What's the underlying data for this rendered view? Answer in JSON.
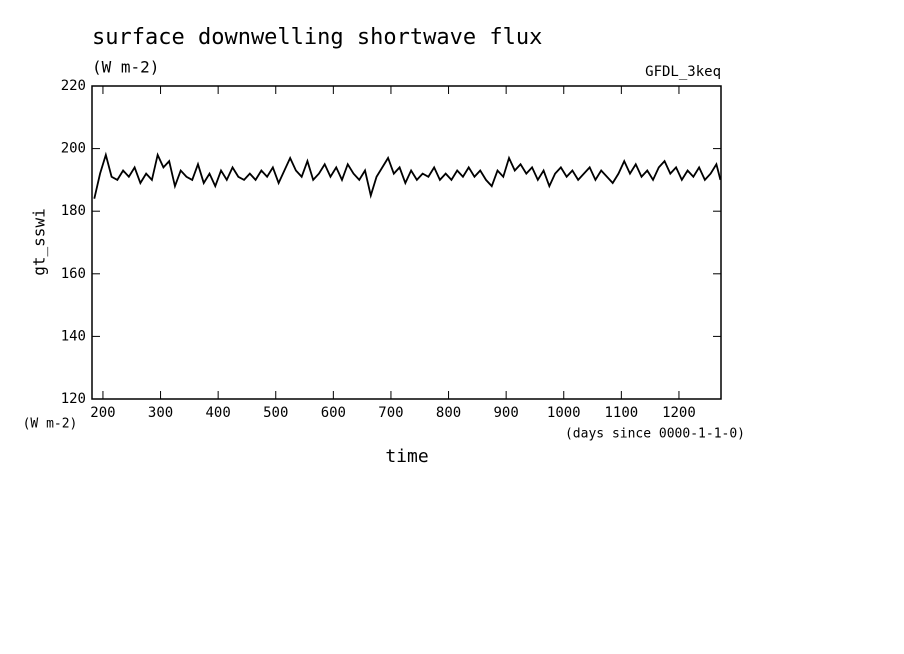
{
  "chart_data": {
    "type": "line",
    "title": "surface downwelling shortwave flux",
    "subtitle": "(W m-2)",
    "annotation": "GFDL_3keq",
    "y_label": "gt_sswi",
    "y_unit": "(W m-2)",
    "x_label": "time",
    "x_unit": "(days since 0000-1-1-0)",
    "x": [
      185,
      195,
      205,
      215,
      225,
      235,
      245,
      255,
      265,
      275,
      285,
      295,
      305,
      315,
      325,
      335,
      345,
      355,
      365,
      375,
      385,
      395,
      405,
      415,
      425,
      435,
      445,
      455,
      465,
      475,
      485,
      495,
      505,
      515,
      525,
      535,
      545,
      555,
      565,
      575,
      585,
      595,
      605,
      615,
      625,
      635,
      645,
      655,
      665,
      675,
      685,
      695,
      705,
      715,
      725,
      735,
      745,
      755,
      765,
      775,
      785,
      795,
      805,
      815,
      825,
      835,
      845,
      855,
      865,
      875,
      885,
      895,
      905,
      915,
      925,
      935,
      945,
      955,
      965,
      975,
      985,
      995,
      1005,
      1015,
      1025,
      1035,
      1045,
      1055,
      1065,
      1075,
      1085,
      1095,
      1105,
      1115,
      1125,
      1135,
      1145,
      1155,
      1165,
      1175,
      1185,
      1195,
      1205,
      1215,
      1225,
      1235,
      1245,
      1255,
      1265,
      1272
    ],
    "series": [
      {
        "color": "#000000",
        "values": [
          184,
          192,
          198,
          191,
          190,
          193,
          191,
          194,
          189,
          192,
          190,
          198,
          194,
          196,
          188,
          193,
          191,
          190,
          195,
          189,
          192,
          188,
          193,
          190,
          194,
          191,
          190,
          192,
          190,
          193,
          191,
          194,
          189,
          193,
          197,
          193,
          191,
          196,
          190,
          192,
          195,
          191,
          194,
          190,
          195,
          192,
          190,
          193,
          185,
          191,
          194,
          197,
          192,
          194,
          189,
          193,
          190,
          192,
          191,
          194,
          190,
          192,
          190,
          193,
          191,
          194,
          191,
          193,
          190,
          188,
          193,
          191,
          197,
          193,
          195,
          192,
          194,
          190,
          193,
          188,
          192,
          194,
          191,
          193,
          190,
          192,
          194,
          190,
          193,
          191,
          189,
          192,
          196,
          192,
          195,
          191,
          193,
          190,
          194,
          196,
          192,
          194,
          190,
          193,
          191,
          194,
          190,
          192,
          195,
          190
        ]
      }
    ],
    "xlim": [
      181,
      1273
    ],
    "ylim": [
      120,
      220
    ],
    "xticks": [
      200,
      300,
      400,
      500,
      600,
      700,
      800,
      900,
      1000,
      1100,
      1200
    ],
    "yticks": [
      120,
      140,
      160,
      180,
      200,
      220
    ]
  }
}
